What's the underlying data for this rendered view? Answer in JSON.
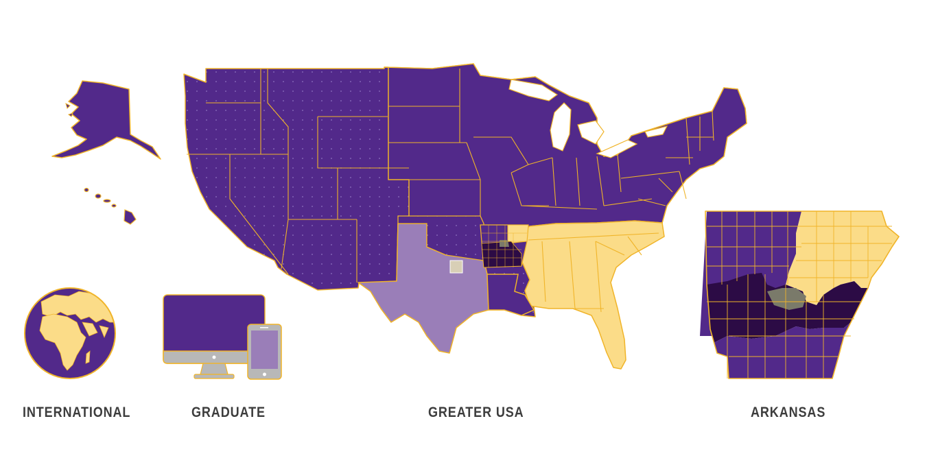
{
  "labels": {
    "international": "INTERNATIONAL",
    "graduate": "GRADUATE",
    "greater_usa": "GREATER USA",
    "arkansas": "ARKANSAS"
  },
  "colors": {
    "purple": "#52298a",
    "light_purple": "#9a7eb8",
    "gold": "#fbdc88",
    "dark_purple": "#2c0b45",
    "gray": "#7a7a6a",
    "outline_gold": "#f0b429",
    "screen_gray": "#b8b8b8",
    "label_text": "#3d3d3d"
  },
  "icons": [
    "globe-icon",
    "desktop-monitor-icon",
    "tablet-icon"
  ]
}
